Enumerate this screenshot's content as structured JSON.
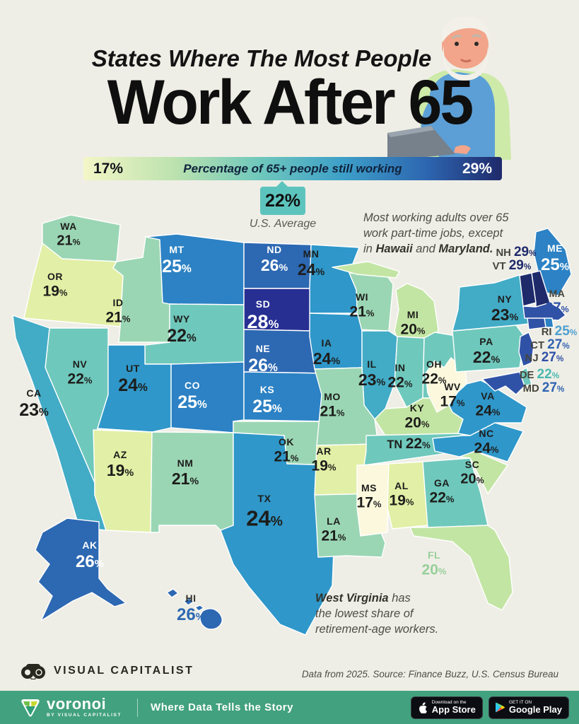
{
  "header": {
    "title_line1": "States Where The Most People",
    "title_line2": "Work After 65"
  },
  "legend": {
    "min": "17%",
    "max": "29%",
    "label": "Percentage of 65+ people still working",
    "avg_value": "22%",
    "avg_caption": "U.S. Average"
  },
  "note_top": {
    "line1": "Most working adults over 65",
    "line2": "work part-time jobs, except",
    "line3_pre": "in ",
    "bold1": "Hawaii",
    "mid": " and ",
    "bold2": "Maryland",
    "end": "."
  },
  "note_bottom": {
    "bold": "West Virginia",
    "rest1": " has",
    "line2": "the lowest share of",
    "line3": "retirement-age workers."
  },
  "chart_data": {
    "type": "choropleth",
    "title": "States Where The Most People Work After 65",
    "metric": "Percentage of 65+ people still working",
    "unit": "%",
    "range": [
      17,
      29
    ],
    "us_average": 22,
    "legend_position": "top",
    "color_scale": {
      "17": "#FBF8DE",
      "19": "#E2EFA6",
      "20": "#C3E5A4",
      "21": "#9BD6B4",
      "22": "#6FC8BC",
      "23": "#42ABC6",
      "24": "#2F97C9",
      "25": "#2C82C4",
      "26": "#2D68B2",
      "27": "#3052A6",
      "28": "#272F93",
      "29": "#1F2A6B"
    },
    "states": [
      {
        "abbr": "WA",
        "value": 21
      },
      {
        "abbr": "OR",
        "value": 19
      },
      {
        "abbr": "CA",
        "value": 23
      },
      {
        "abbr": "NV",
        "value": 22
      },
      {
        "abbr": "ID",
        "value": 21
      },
      {
        "abbr": "MT",
        "value": 25
      },
      {
        "abbr": "WY",
        "value": 22
      },
      {
        "abbr": "UT",
        "value": 24
      },
      {
        "abbr": "CO",
        "value": 25
      },
      {
        "abbr": "AZ",
        "value": 19
      },
      {
        "abbr": "NM",
        "value": 21
      },
      {
        "abbr": "ND",
        "value": 26
      },
      {
        "abbr": "SD",
        "value": 28
      },
      {
        "abbr": "NE",
        "value": 26
      },
      {
        "abbr": "KS",
        "value": 25
      },
      {
        "abbr": "OK",
        "value": 21
      },
      {
        "abbr": "TX",
        "value": 24
      },
      {
        "abbr": "MN",
        "value": 24
      },
      {
        "abbr": "IA",
        "value": 24
      },
      {
        "abbr": "MO",
        "value": 21
      },
      {
        "abbr": "AR",
        "value": 19
      },
      {
        "abbr": "LA",
        "value": 21
      },
      {
        "abbr": "WI",
        "value": 21
      },
      {
        "abbr": "IL",
        "value": 23
      },
      {
        "abbr": "MI",
        "value": 20
      },
      {
        "abbr": "IN",
        "value": 22
      },
      {
        "abbr": "OH",
        "value": 22
      },
      {
        "abbr": "KY",
        "value": 20
      },
      {
        "abbr": "TN",
        "value": 22
      },
      {
        "abbr": "MS",
        "value": 17
      },
      {
        "abbr": "AL",
        "value": 19
      },
      {
        "abbr": "GA",
        "value": 22
      },
      {
        "abbr": "SC",
        "value": 20
      },
      {
        "abbr": "NC",
        "value": 24
      },
      {
        "abbr": "VA",
        "value": 24
      },
      {
        "abbr": "WV",
        "value": 17
      },
      {
        "abbr": "PA",
        "value": 22
      },
      {
        "abbr": "NY",
        "value": 23
      },
      {
        "abbr": "NJ",
        "value": 27,
        "value_color": "#3052A6"
      },
      {
        "abbr": "DE",
        "value": 22,
        "value_color": "#49B9B0"
      },
      {
        "abbr": "MD",
        "value": 27,
        "value_color": "#2F63B0"
      },
      {
        "abbr": "MA",
        "value": 27,
        "value_color": "#3052A6"
      },
      {
        "abbr": "RI",
        "value": 25,
        "value_color": "#4C9FD0"
      },
      {
        "abbr": "CT",
        "value": 27,
        "value_color": "#2F63B0"
      },
      {
        "abbr": "VT",
        "value": 29,
        "value_color": "#1F2A6B"
      },
      {
        "abbr": "NH",
        "value": 29,
        "value_color": "#1F2A6B"
      },
      {
        "abbr": "ME",
        "value": 25
      },
      {
        "abbr": "FL",
        "value": 20,
        "abbr_color": "#97CF9B",
        "value_color": "#97CF9B"
      },
      {
        "abbr": "AK",
        "value": 26
      },
      {
        "abbr": "HI",
        "value": 26,
        "abbr_color": "#33332d",
        "value_color": "#2D68B2"
      }
    ]
  },
  "source": "Data from 2025. Source: Finance Buzz, U.S. Census Bureau",
  "footer": {
    "brand": "VISUAL CAPITALIST"
  },
  "bottom_bar": {
    "logo": "voronoi",
    "sub": "BY VISUAL CAPITALIST",
    "tagline": "Where Data Tells the Story",
    "badge1_top": "Download on the",
    "badge1_main": "App Store",
    "badge2_top": "GET IT ON",
    "badge2_main": "Google Play",
    "bg": "#42A17E"
  }
}
